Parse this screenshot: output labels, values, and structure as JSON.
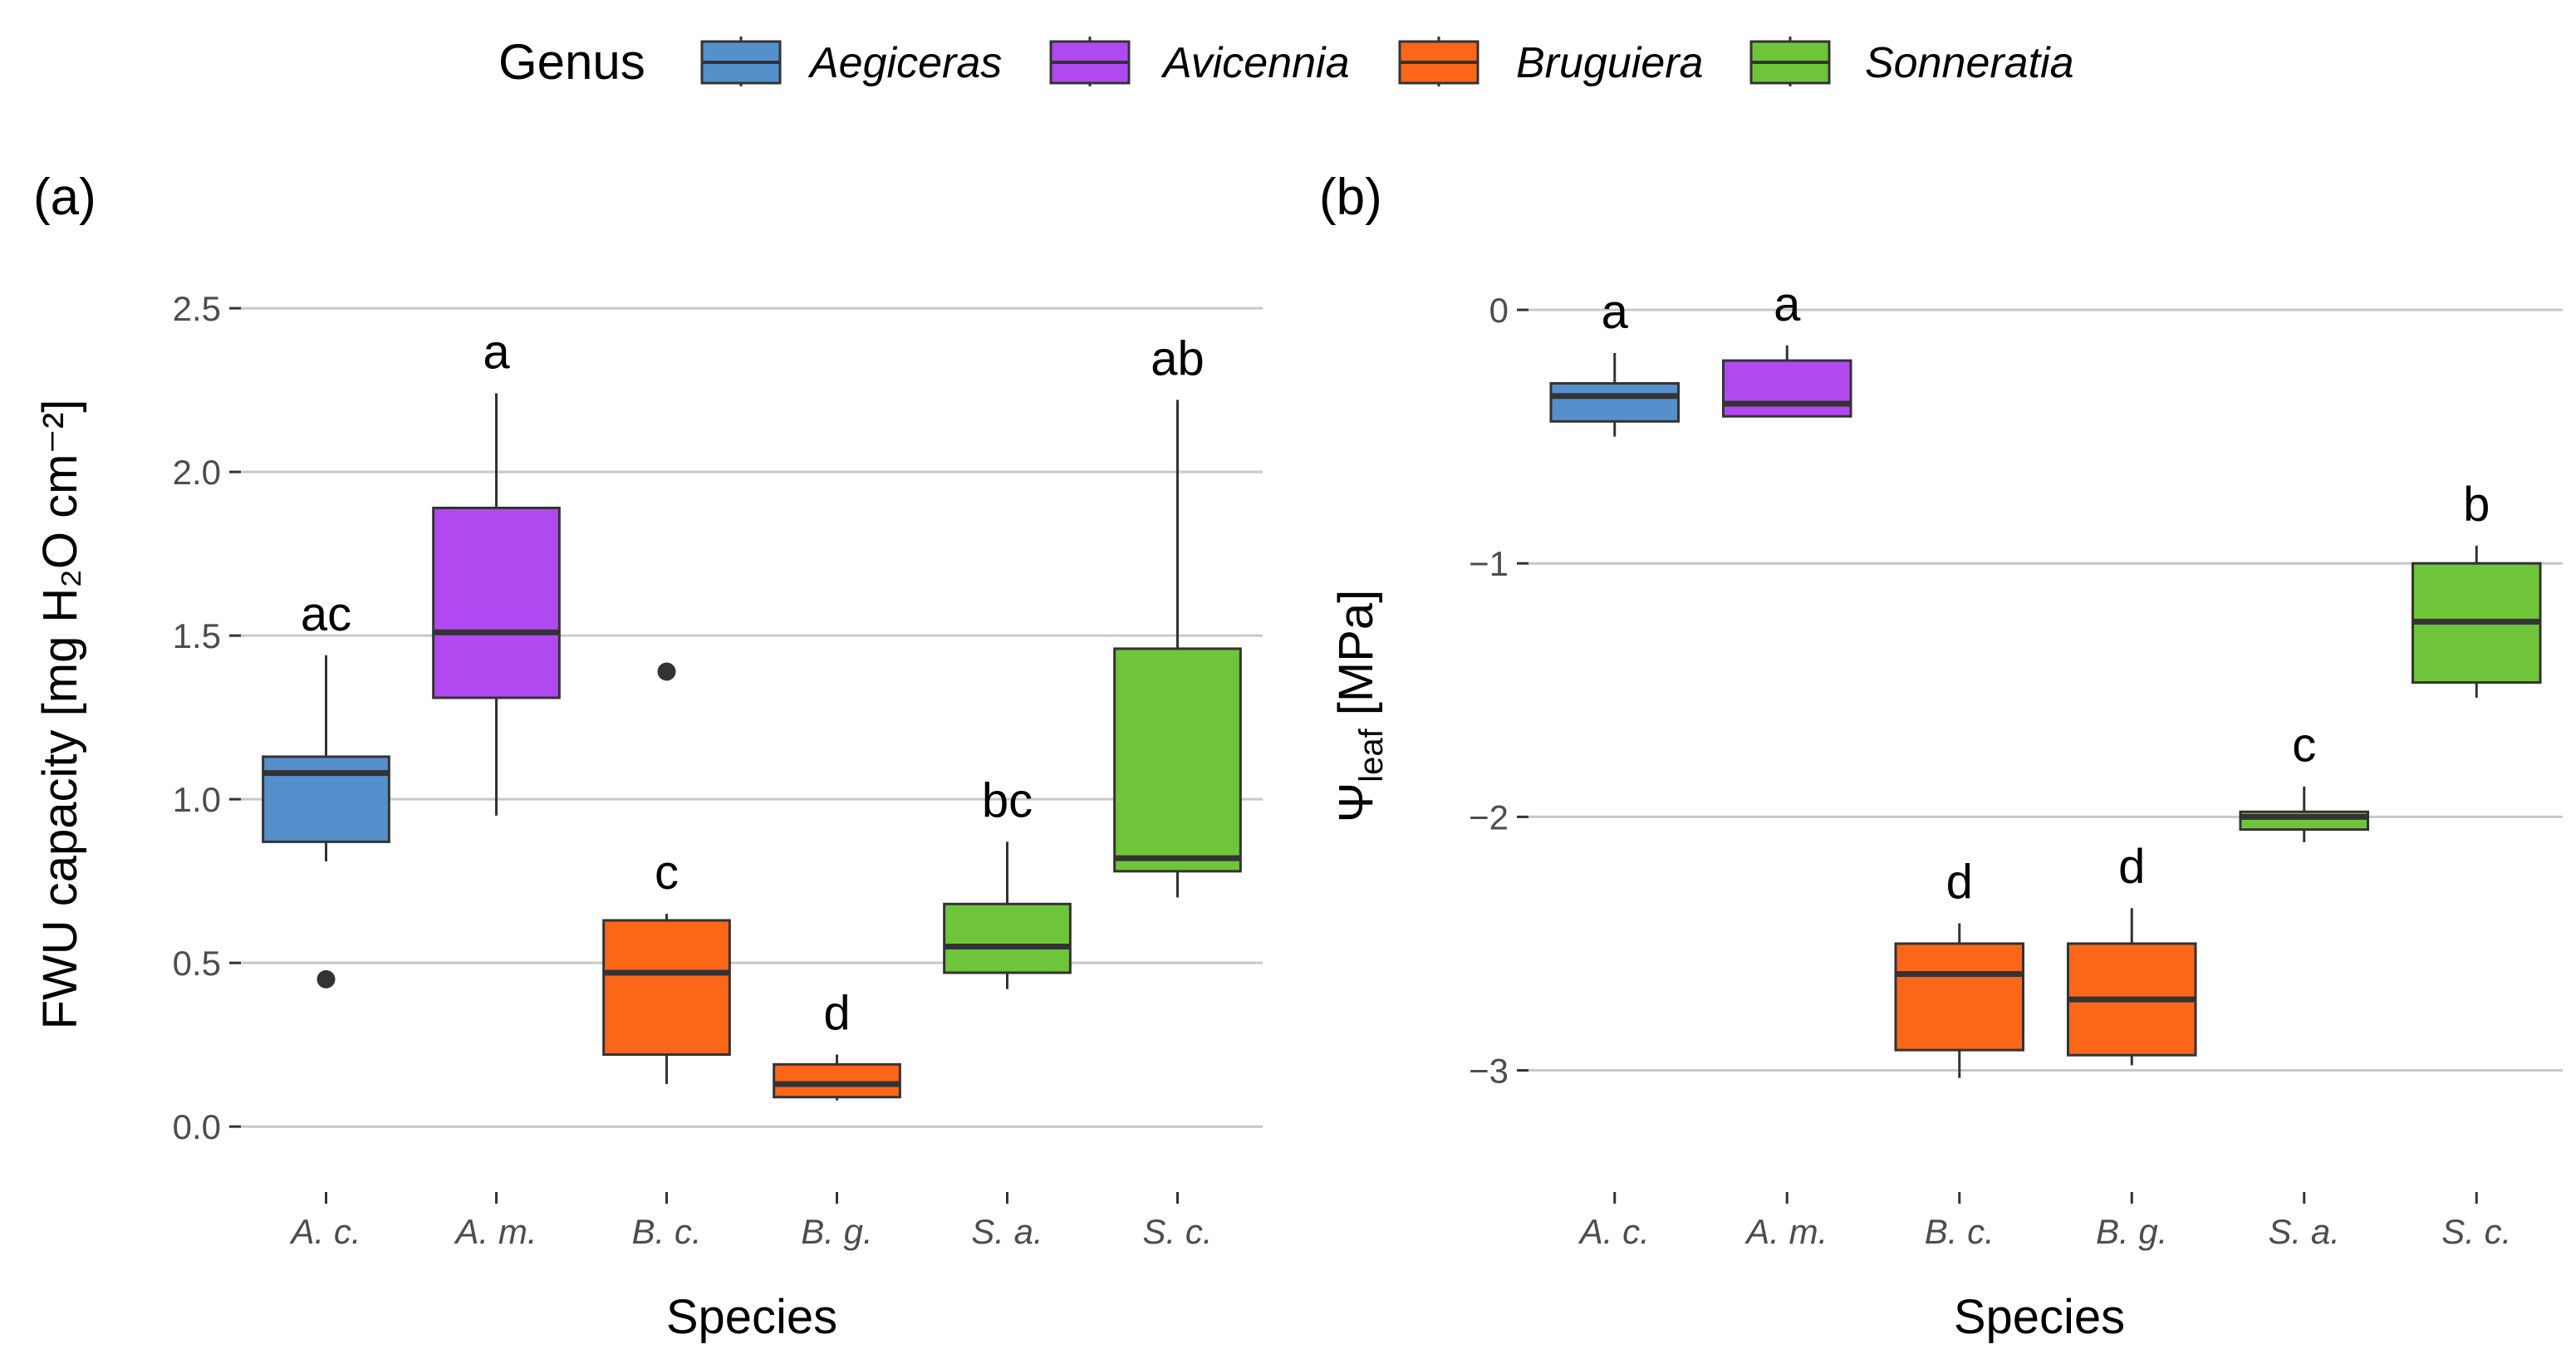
{
  "legend": {
    "title": "Genus",
    "entries": [
      {
        "name": "Aegiceras",
        "color": "#5590cc"
      },
      {
        "name": "Avicennia",
        "color": "#b149f0"
      },
      {
        "name": "Bruguiera",
        "color": "#fb6619"
      },
      {
        "name": "Sonneratia",
        "color": "#6ec53a"
      }
    ]
  },
  "chart_data": [
    {
      "type": "box",
      "panel_label": "(a)",
      "title": "",
      "xlabel": "Species",
      "ylabel": "FWU capacity [mg H₂O cm⁻²]",
      "ylim": [
        -0.2,
        2.65
      ],
      "yticks": [
        0.0,
        0.5,
        1.0,
        1.5,
        2.0,
        2.5
      ],
      "ytick_labels": [
        "0.0",
        "0.5",
        "1.0",
        "1.5",
        "2.0",
        "2.5"
      ],
      "categories": [
        "A. c.",
        "A. m.",
        "B. c.",
        "B. g.",
        "S. a.",
        "S. c."
      ],
      "genus": [
        "Aegiceras",
        "Avicennia",
        "Bruguiera",
        "Bruguiera",
        "Sonneratia",
        "Sonneratia"
      ],
      "boxes": [
        {
          "min": 0.81,
          "q1": 0.87,
          "median": 1.08,
          "q3": 1.13,
          "max": 1.44,
          "outliers": [
            0.45
          ],
          "letter": "ac"
        },
        {
          "min": 0.95,
          "q1": 1.31,
          "median": 1.51,
          "q3": 1.89,
          "max": 2.24,
          "outliers": [],
          "letter": "a"
        },
        {
          "min": 0.13,
          "q1": 0.22,
          "median": 0.47,
          "q3": 0.63,
          "max": 0.65,
          "outliers": [
            1.39
          ],
          "letter": "c"
        },
        {
          "min": 0.08,
          "q1": 0.09,
          "median": 0.13,
          "q3": 0.19,
          "max": 0.22,
          "outliers": [],
          "letter": "d"
        },
        {
          "min": 0.42,
          "q1": 0.47,
          "median": 0.55,
          "q3": 0.68,
          "max": 0.87,
          "outliers": [],
          "letter": "bc"
        },
        {
          "min": 0.7,
          "q1": 0.78,
          "median": 0.82,
          "q3": 1.46,
          "max": 2.22,
          "outliers": [],
          "letter": "ab"
        }
      ]
    },
    {
      "type": "box",
      "panel_label": "(b)",
      "title": "",
      "xlabel": "Species",
      "ylabel": "Ψ",
      "ylabel_sub": "leaf",
      "ylabel_suffix": " [MPa]",
      "ylim": [
        -3.48,
        0.2
      ],
      "yticks": [
        0,
        -1,
        -2,
        -3
      ],
      "ytick_labels": [
        "0",
        "−1",
        "−2",
        "−3"
      ],
      "categories": [
        "A. c.",
        "A. m.",
        "B. c.",
        "B. g.",
        "S. a.",
        "S. c."
      ],
      "genus": [
        "Aegiceras",
        "Avicennia",
        "Bruguiera",
        "Bruguiera",
        "Sonneratia",
        "Sonneratia"
      ],
      "boxes": [
        {
          "min": -0.5,
          "q1": -0.44,
          "median": -0.34,
          "q3": -0.29,
          "max": -0.17,
          "outliers": [],
          "letter": "a"
        },
        {
          "min": -0.42,
          "q1": -0.42,
          "median": -0.37,
          "q3": -0.2,
          "max": -0.14,
          "outliers": [],
          "letter": "a"
        },
        {
          "min": -3.03,
          "q1": -2.92,
          "median": -2.62,
          "q3": -2.5,
          "max": -2.42,
          "outliers": [],
          "letter": "d"
        },
        {
          "min": -2.98,
          "q1": -2.94,
          "median": -2.72,
          "q3": -2.5,
          "max": -2.36,
          "outliers": [],
          "letter": "d"
        },
        {
          "min": -2.1,
          "q1": -2.05,
          "median": -2.0,
          "q3": -1.98,
          "max": -1.88,
          "outliers": [],
          "letter": "c"
        },
        {
          "min": -1.53,
          "q1": -1.47,
          "median": -1.23,
          "q3": -1.0,
          "max": -0.93,
          "outliers": [],
          "letter": "b"
        }
      ]
    }
  ]
}
